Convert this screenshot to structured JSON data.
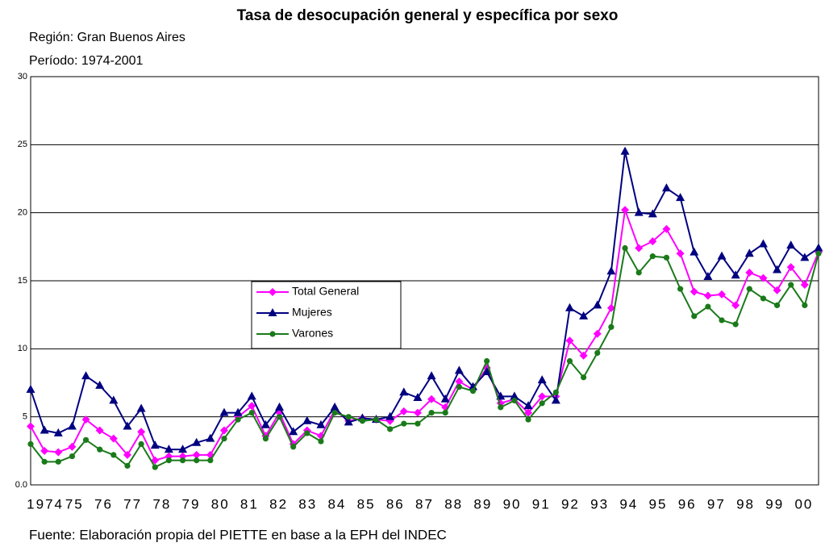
{
  "chart_data": {
    "type": "line",
    "title": "Tasa de desocupación general y específica por sexo",
    "subtitles": [
      "Región: Gran Buenos Aires",
      "Período: 1974-2001"
    ],
    "source": "Fuente: Elaboración propia del PIETTE  en base a la EPH del INDEC",
    "x_labels": [
      "1974",
      "75",
      "76",
      "77",
      "78",
      "79",
      "80",
      "81",
      "82",
      "83",
      "84",
      "85",
      "86",
      "87",
      "88",
      "89",
      "90",
      "91",
      "92",
      "93",
      "94",
      "95",
      "96",
      "97",
      "98",
      "99",
      "00"
    ],
    "ylim": [
      0,
      30
    ],
    "yticks": [
      {
        "value": 0,
        "label": "0.0"
      },
      5,
      10,
      15,
      20,
      25,
      30
    ],
    "grid": true,
    "series": [
      {
        "name": "Total General",
        "color": "#ff00ff",
        "marker": "diamond",
        "values": [
          4.3,
          2.5,
          2.4,
          2.8,
          4.8,
          4.0,
          3.4,
          2.2,
          3.9,
          1.8,
          2.1,
          2.1,
          2.2,
          2.2,
          4.0,
          5.0,
          5.8,
          3.6,
          5.3,
          3.0,
          4.0,
          3.6,
          5.5,
          4.7,
          4.9,
          4.8,
          4.7,
          5.4,
          5.3,
          6.3,
          5.7,
          7.6,
          7.0,
          8.6,
          6.0,
          6.3,
          5.3,
          6.5,
          6.5,
          10.6,
          9.5,
          11.1,
          13.0,
          20.2,
          17.4,
          17.9,
          18.8,
          17.0,
          14.2,
          13.9,
          14.0,
          13.2,
          15.6,
          15.2,
          14.3,
          16.0,
          14.7,
          17.1
        ]
      },
      {
        "name": "Mujeres",
        "color": "#000080",
        "marker": "triangle",
        "values": [
          7.0,
          4.0,
          3.8,
          4.3,
          8.0,
          7.3,
          6.2,
          4.3,
          5.6,
          2.9,
          2.6,
          2.6,
          3.1,
          3.4,
          5.3,
          5.3,
          6.5,
          4.4,
          5.7,
          3.9,
          4.7,
          4.4,
          5.7,
          4.6,
          4.9,
          4.8,
          5.0,
          6.8,
          6.4,
          8.0,
          6.3,
          8.4,
          7.2,
          8.3,
          6.5,
          6.5,
          5.8,
          7.7,
          6.2,
          13.0,
          12.4,
          13.2,
          15.7,
          24.5,
          20.0,
          19.9,
          21.8,
          21.1,
          17.1,
          15.3,
          16.8,
          15.4,
          17.0,
          17.7,
          15.8,
          17.6,
          16.7,
          17.4
        ]
      },
      {
        "name": "Varones",
        "color": "#1a7a1a",
        "marker": "circle",
        "values": [
          3.0,
          1.7,
          1.7,
          2.1,
          3.3,
          2.6,
          2.2,
          1.4,
          3.0,
          1.3,
          1.8,
          1.8,
          1.8,
          1.8,
          3.4,
          4.8,
          5.3,
          3.4,
          5.0,
          2.8,
          3.8,
          3.2,
          5.3,
          5.0,
          4.7,
          4.8,
          4.1,
          4.5,
          4.5,
          5.3,
          5.3,
          7.2,
          6.9,
          9.1,
          5.7,
          6.2,
          4.8,
          6.0,
          6.8,
          9.1,
          7.9,
          9.7,
          11.6,
          17.4,
          15.6,
          16.8,
          16.7,
          14.4,
          12.4,
          13.1,
          12.1,
          11.8,
          14.4,
          13.7,
          13.2,
          14.7,
          13.2,
          17.0
        ]
      }
    ]
  }
}
